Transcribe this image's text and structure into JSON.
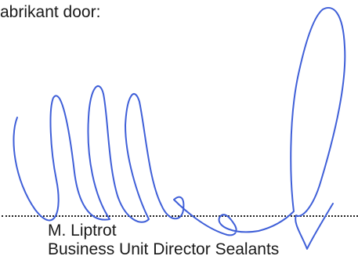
{
  "intro": "abrikant door:",
  "signature": {
    "type": "handwritten signature",
    "ink_color": "#3f5fd8"
  },
  "signatory": {
    "name": "M. Liptrot",
    "title": "Business Unit Director Sealants"
  }
}
